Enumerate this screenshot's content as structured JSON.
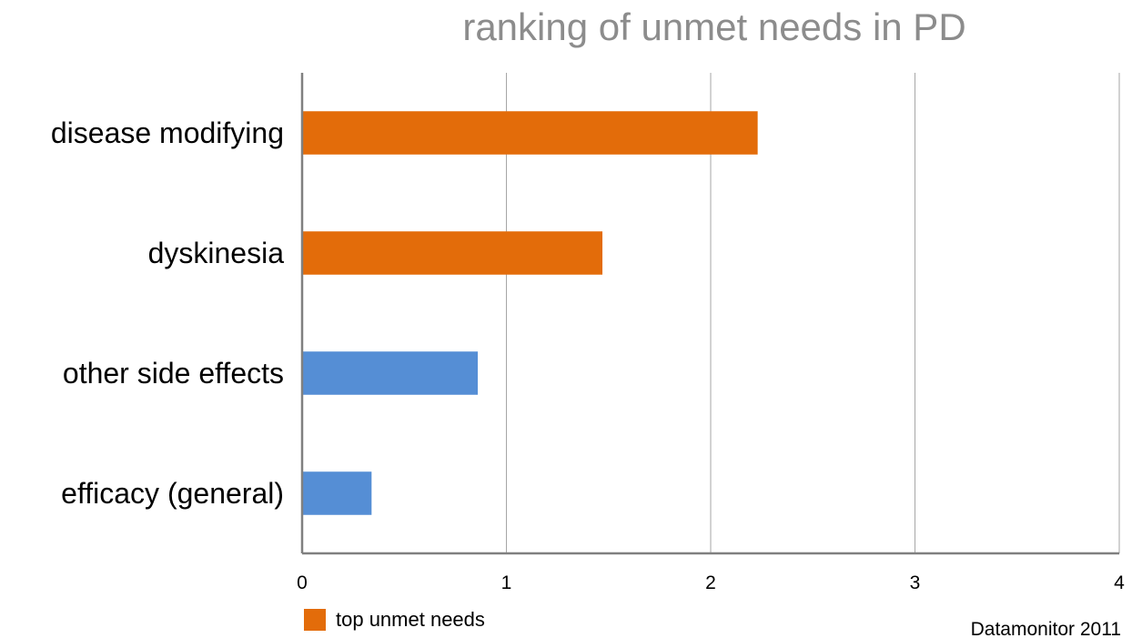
{
  "chart_data": {
    "type": "bar",
    "orientation": "horizontal",
    "title": "ranking of unmet needs in PD",
    "categories": [
      "disease modifying",
      "dyskinesia",
      "other side effects",
      "efficacy (general)"
    ],
    "values": [
      2.23,
      1.47,
      0.86,
      0.34
    ],
    "highlighted": [
      true,
      true,
      false,
      false
    ],
    "xlim": [
      0,
      4
    ],
    "xticks": [
      "0",
      "1",
      "2",
      "3",
      "4"
    ],
    "xgrid": true,
    "legend": {
      "label": "top unmet needs",
      "placement": "bottom-left"
    },
    "source": "Datamonitor 2011",
    "colors": {
      "highlight": "#e36c0a",
      "default": "#558ed5",
      "grid": "#a6a6a6",
      "axis": "#808080",
      "title": "#8c8c8c"
    }
  }
}
